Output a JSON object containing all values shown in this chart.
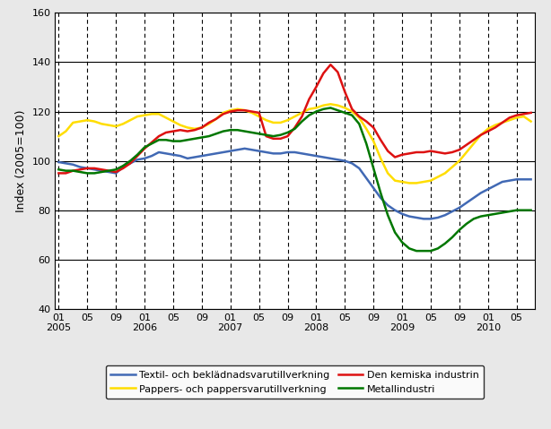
{
  "title": "",
  "ylabel": "Index (2005=100)",
  "ylim": [
    40,
    160
  ],
  "yticks": [
    40,
    60,
    80,
    100,
    120,
    140,
    160
  ],
  "background_color": "#e8e8e8",
  "plot_background": "#ffffff",
  "hlines": [
    40,
    60,
    80,
    100,
    120,
    140,
    160
  ],
  "series": {
    "textil": {
      "label": "Textil- och beklädnadsvarutillverkning",
      "color": "#4169b4",
      "data": [
        99.5,
        99.0,
        98.5,
        97.5,
        97.0,
        96.5,
        96.0,
        95.5,
        95.0,
        97.5,
        99.0,
        100.5,
        101.0,
        102.0,
        103.5,
        103.0,
        102.5,
        102.0,
        101.0,
        101.5,
        102.0,
        102.5,
        103.0,
        103.5,
        104.0,
        104.5,
        105.0,
        104.5,
        104.0,
        103.5,
        103.0,
        103.0,
        103.5,
        103.5,
        103.0,
        102.5,
        102.0,
        101.5,
        101.0,
        100.5,
        100.0,
        99.0,
        97.0,
        93.0,
        89.0,
        85.0,
        82.0,
        80.0,
        78.5,
        77.5,
        77.0,
        76.5,
        76.5,
        77.0,
        78.0,
        79.5,
        81.0,
        83.0,
        85.0,
        87.0,
        88.5,
        90.0,
        91.5,
        92.0,
        92.5,
        92.5,
        92.5
      ]
    },
    "pappers": {
      "label": "Pappers- och pappersvarutillverkning",
      "color": "#ffdd00",
      "data": [
        110.0,
        112.0,
        115.5,
        116.0,
        116.5,
        116.0,
        115.0,
        114.5,
        114.0,
        115.0,
        116.5,
        118.0,
        118.5,
        119.0,
        119.0,
        117.5,
        116.0,
        114.5,
        113.5,
        113.0,
        113.5,
        115.0,
        117.0,
        119.5,
        120.5,
        121.0,
        120.5,
        119.5,
        118.0,
        116.5,
        115.5,
        115.5,
        116.5,
        118.0,
        119.5,
        121.0,
        121.5,
        122.5,
        123.0,
        122.5,
        121.5,
        120.0,
        117.5,
        113.0,
        108.0,
        101.0,
        95.0,
        92.0,
        91.5,
        91.0,
        91.0,
        91.5,
        92.0,
        93.5,
        95.0,
        97.5,
        100.0,
        103.5,
        107.0,
        110.5,
        113.0,
        114.5,
        115.5,
        116.5,
        117.5,
        118.0,
        116.0
      ]
    },
    "kemiska": {
      "label": "Den kemiska industrin",
      "color": "#dd1111",
      "data": [
        95.0,
        95.0,
        96.0,
        96.5,
        97.0,
        97.0,
        96.5,
        96.0,
        95.5,
        97.0,
        99.0,
        102.0,
        105.0,
        107.5,
        110.0,
        111.5,
        112.0,
        112.5,
        112.0,
        112.5,
        113.5,
        115.5,
        117.0,
        119.0,
        120.0,
        120.5,
        120.5,
        120.0,
        119.5,
        110.0,
        109.0,
        109.0,
        110.0,
        113.5,
        118.0,
        125.0,
        130.0,
        135.5,
        139.0,
        136.0,
        128.0,
        121.0,
        118.0,
        116.0,
        113.5,
        108.5,
        104.0,
        101.5,
        102.5,
        103.0,
        103.5,
        103.5,
        104.0,
        103.5,
        103.0,
        103.5,
        104.5,
        106.5,
        108.5,
        110.5,
        112.0,
        113.5,
        115.5,
        117.5,
        118.5,
        119.0,
        119.5
      ]
    },
    "metall": {
      "label": "Metallindustri",
      "color": "#007700",
      "data": [
        96.5,
        96.0,
        96.0,
        95.5,
        95.0,
        95.0,
        95.5,
        96.0,
        96.5,
        98.0,
        100.0,
        102.5,
        105.5,
        107.0,
        108.5,
        108.5,
        108.0,
        108.0,
        108.5,
        109.0,
        109.5,
        110.0,
        111.0,
        112.0,
        112.5,
        112.5,
        112.0,
        111.5,
        111.0,
        110.5,
        110.0,
        110.5,
        111.5,
        113.0,
        116.0,
        118.5,
        120.0,
        121.0,
        121.5,
        120.5,
        119.5,
        118.5,
        115.0,
        107.0,
        97.0,
        87.0,
        78.0,
        71.0,
        67.0,
        64.5,
        63.5,
        63.5,
        63.5,
        64.5,
        66.5,
        69.0,
        72.0,
        74.5,
        76.5,
        77.5,
        78.0,
        78.5,
        79.0,
        79.5,
        80.0,
        80.0,
        80.0
      ]
    }
  },
  "n_months": 67,
  "vline_positions": [
    0,
    12,
    24,
    36,
    48,
    60
  ],
  "linewidth": 1.8,
  "figsize": [
    6.14,
    4.79
  ],
  "dpi": 100,
  "legend_order": [
    "textil",
    "pappers",
    "kemiska",
    "metall"
  ]
}
